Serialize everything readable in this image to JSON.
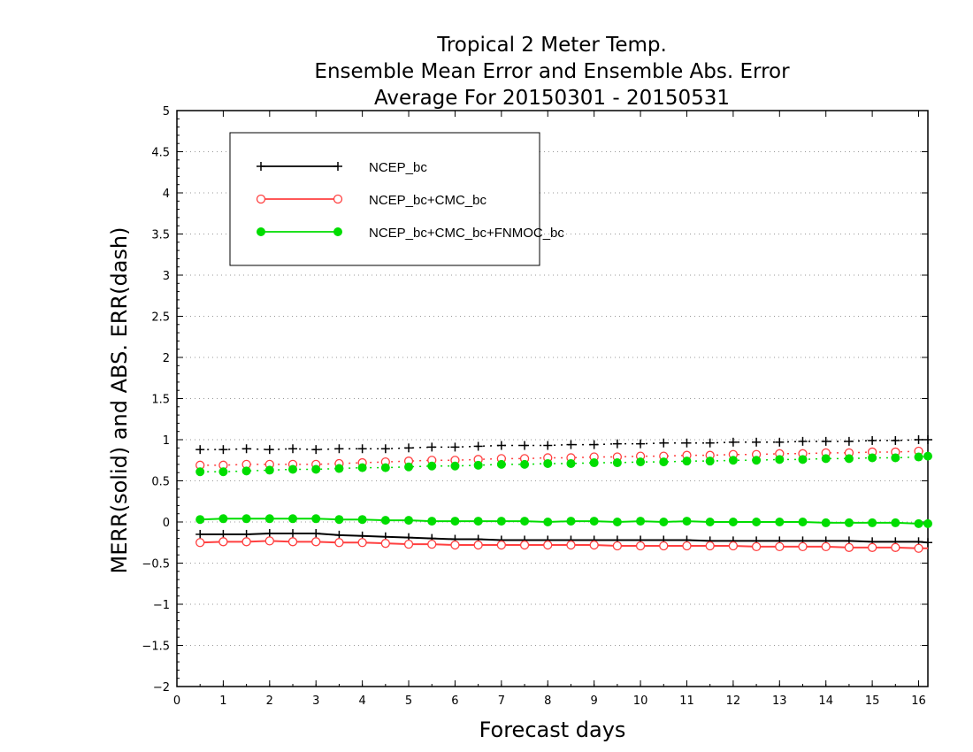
{
  "chart_data": {
    "type": "line",
    "title_lines": [
      "Tropical 2 Meter Temp.",
      "Ensemble Mean Error and Ensemble Abs. Error",
      "Average For 20150301 - 20150531"
    ],
    "xlabel": "Forecast days",
    "ylabel": "MERR(solid) and ABS. ERR(dash)",
    "xlim": [
      0,
      16.2
    ],
    "ylim": [
      -2,
      5
    ],
    "xticks": [
      0,
      1,
      2,
      3,
      4,
      5,
      6,
      7,
      8,
      9,
      10,
      11,
      12,
      13,
      14,
      15,
      16
    ],
    "xtick_labels": [
      "0",
      "1",
      "2",
      "3",
      "4",
      "5",
      "6",
      "7",
      "8",
      "9",
      "10",
      "11",
      "12",
      "13",
      "14",
      "15",
      "16"
    ],
    "yticks": [
      -2,
      -1.5,
      -1,
      -0.5,
      0,
      0.5,
      1,
      1.5,
      2,
      2.5,
      3,
      3.5,
      4,
      4.5,
      5
    ],
    "ytick_labels": [
      "−2",
      "−1.5",
      "−1",
      "−0.5",
      "0",
      "0.5",
      "1",
      "1.5",
      "2",
      "2.5",
      "3",
      "3.5",
      "4",
      "4.5",
      "5"
    ],
    "grid": "horizontal dotted",
    "legend_position": "top-left",
    "x": [
      0.5,
      1,
      1.5,
      2,
      2.5,
      3,
      3.5,
      4,
      4.5,
      5,
      5.5,
      6,
      6.5,
      7,
      7.5,
      8,
      8.5,
      9,
      9.5,
      10,
      10.5,
      11,
      11.5,
      12,
      12.5,
      13,
      13.5,
      14,
      14.5,
      15,
      15.5,
      16,
      16.2
    ],
    "series": [
      {
        "name": "NCEP_bc",
        "color": "#000000",
        "marker": "plus",
        "mean_error": [
          -0.15,
          -0.15,
          -0.15,
          -0.14,
          -0.14,
          -0.14,
          -0.16,
          -0.17,
          -0.18,
          -0.19,
          -0.2,
          -0.21,
          -0.21,
          -0.22,
          -0.22,
          -0.22,
          -0.22,
          -0.22,
          -0.22,
          -0.22,
          -0.22,
          -0.22,
          -0.23,
          -0.23,
          -0.23,
          -0.23,
          -0.23,
          -0.23,
          -0.23,
          -0.24,
          -0.24,
          -0.24,
          -0.25
        ],
        "abs_error": [
          0.88,
          0.88,
          0.89,
          0.88,
          0.89,
          0.88,
          0.89,
          0.89,
          0.89,
          0.9,
          0.91,
          0.91,
          0.92,
          0.93,
          0.93,
          0.93,
          0.94,
          0.94,
          0.95,
          0.95,
          0.96,
          0.96,
          0.96,
          0.97,
          0.97,
          0.97,
          0.98,
          0.98,
          0.98,
          0.99,
          0.99,
          1.0,
          1.0
        ]
      },
      {
        "name": "NCEP_bc+CMC_bc",
        "color": "#ff4040",
        "marker": "open-circle",
        "mean_error": [
          -0.25,
          -0.24,
          -0.24,
          -0.23,
          -0.24,
          -0.24,
          -0.25,
          -0.25,
          -0.26,
          -0.27,
          -0.27,
          -0.28,
          -0.28,
          -0.28,
          -0.28,
          -0.28,
          -0.28,
          -0.28,
          -0.29,
          -0.29,
          -0.29,
          -0.29,
          -0.29,
          -0.29,
          -0.3,
          -0.3,
          -0.3,
          -0.3,
          -0.31,
          -0.31,
          -0.31,
          -0.32,
          -0.32
        ],
        "abs_error": [
          0.69,
          0.69,
          0.7,
          0.7,
          0.7,
          0.7,
          0.71,
          0.72,
          0.73,
          0.74,
          0.75,
          0.75,
          0.76,
          0.77,
          0.77,
          0.78,
          0.78,
          0.79,
          0.79,
          0.8,
          0.8,
          0.81,
          0.81,
          0.82,
          0.82,
          0.83,
          0.83,
          0.84,
          0.84,
          0.85,
          0.85,
          0.86,
          0.86
        ]
      },
      {
        "name": "NCEP_bc+CMC_bc+FNMOC_bc",
        "color": "#00dd00",
        "marker": "filled-circle",
        "mean_error": [
          0.03,
          0.04,
          0.04,
          0.04,
          0.04,
          0.04,
          0.03,
          0.03,
          0.02,
          0.02,
          0.01,
          0.01,
          0.01,
          0.01,
          0.01,
          0.0,
          0.01,
          0.01,
          0.0,
          0.01,
          0.0,
          0.01,
          0.0,
          0.0,
          0.0,
          0.0,
          0.0,
          -0.01,
          -0.01,
          -0.01,
          -0.01,
          -0.02,
          -0.02
        ],
        "abs_error": [
          0.61,
          0.61,
          0.62,
          0.63,
          0.64,
          0.64,
          0.65,
          0.66,
          0.66,
          0.67,
          0.68,
          0.68,
          0.69,
          0.7,
          0.7,
          0.71,
          0.71,
          0.72,
          0.72,
          0.73,
          0.73,
          0.74,
          0.74,
          0.75,
          0.75,
          0.76,
          0.76,
          0.77,
          0.77,
          0.78,
          0.78,
          0.79,
          0.8
        ]
      }
    ]
  }
}
